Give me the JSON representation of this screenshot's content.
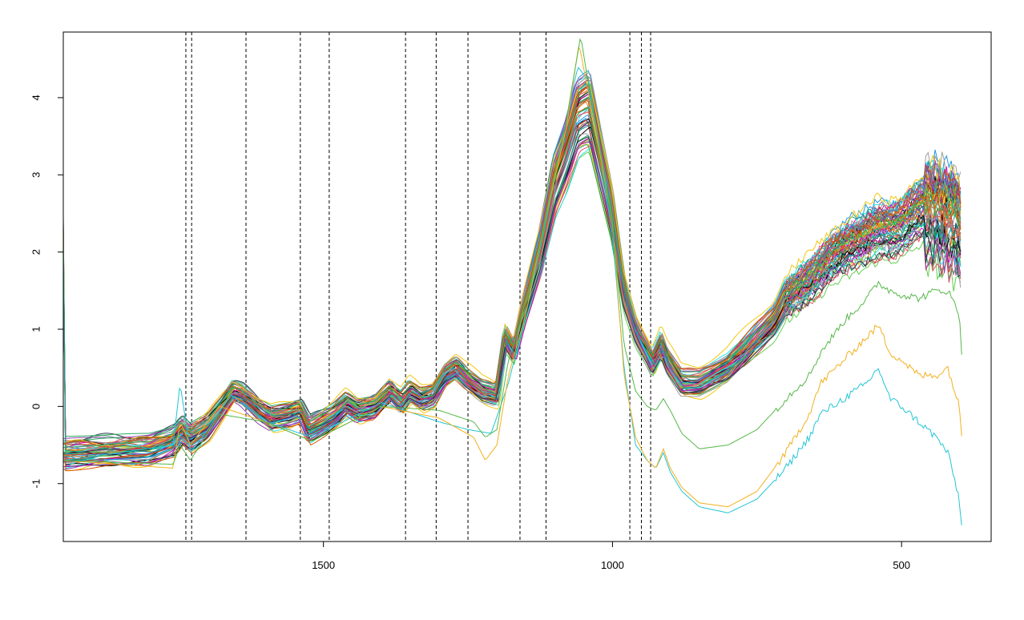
{
  "chart_data": {
    "type": "line",
    "title": "",
    "xlabel": "",
    "ylabel": "",
    "x_reversed": true,
    "xlim": [
      1950,
      345
    ],
    "ylim": [
      -1.75,
      4.85
    ],
    "grid": false,
    "legend": "none",
    "x_ticks": [
      {
        "value": 1500,
        "label": "1500"
      },
      {
        "value": 1000,
        "label": "1000"
      },
      {
        "value": 500,
        "label": "500"
      }
    ],
    "y_ticks": [
      {
        "value": -1,
        "label": "-1"
      },
      {
        "value": 0,
        "label": "0"
      },
      {
        "value": 1,
        "label": "1"
      },
      {
        "value": 2,
        "label": "2"
      },
      {
        "value": 3,
        "label": "3"
      },
      {
        "value": 4,
        "label": "4"
      }
    ],
    "vertical_lines": [
      1738,
      1728,
      1634,
      1540,
      1490,
      1358,
      1305,
      1250,
      1160,
      1115,
      970,
      950,
      934
    ],
    "base_spectrum": [
      [
        1950,
        -0.6
      ],
      [
        1800,
        -0.55
      ],
      [
        1760,
        -0.45
      ],
      [
        1745,
        -0.3
      ],
      [
        1730,
        -0.4
      ],
      [
        1700,
        -0.25
      ],
      [
        1670,
        0.05
      ],
      [
        1655,
        0.2
      ],
      [
        1640,
        0.15
      ],
      [
        1610,
        -0.05
      ],
      [
        1590,
        -0.15
      ],
      [
        1560,
        -0.1
      ],
      [
        1540,
        -0.05
      ],
      [
        1525,
        -0.3
      ],
      [
        1500,
        -0.2
      ],
      [
        1480,
        -0.1
      ],
      [
        1460,
        0.05
      ],
      [
        1440,
        -0.05
      ],
      [
        1410,
        0.0
      ],
      [
        1385,
        0.2
      ],
      [
        1365,
        0.05
      ],
      [
        1350,
        0.2
      ],
      [
        1330,
        0.1
      ],
      [
        1310,
        0.15
      ],
      [
        1290,
        0.4
      ],
      [
        1270,
        0.5
      ],
      [
        1250,
        0.35
      ],
      [
        1225,
        0.2
      ],
      [
        1200,
        0.15
      ],
      [
        1185,
        0.9
      ],
      [
        1170,
        0.7
      ],
      [
        1155,
        1.2
      ],
      [
        1125,
        2.0
      ],
      [
        1100,
        2.9
      ],
      [
        1080,
        3.3
      ],
      [
        1060,
        3.8
      ],
      [
        1040,
        3.9
      ],
      [
        1020,
        3.2
      ],
      [
        1000,
        2.5
      ],
      [
        980,
        1.5
      ],
      [
        960,
        1.0
      ],
      [
        940,
        0.7
      ],
      [
        930,
        0.55
      ],
      [
        915,
        0.8
      ],
      [
        905,
        0.6
      ],
      [
        880,
        0.3
      ],
      [
        850,
        0.3
      ],
      [
        800,
        0.5
      ],
      [
        760,
        0.8
      ],
      [
        720,
        1.1
      ],
      [
        700,
        1.4
      ],
      [
        680,
        1.5
      ],
      [
        650,
        1.7
      ],
      [
        620,
        1.95
      ],
      [
        590,
        2.1
      ],
      [
        560,
        2.2
      ],
      [
        540,
        2.3
      ],
      [
        520,
        2.3
      ],
      [
        500,
        2.35
      ],
      [
        480,
        2.5
      ],
      [
        460,
        2.6
      ],
      [
        440,
        2.55
      ],
      [
        420,
        2.5
      ],
      [
        400,
        2.4
      ],
      [
        395,
        2.2
      ]
    ],
    "outlier_spectra": [
      {
        "color": "#22c5d6",
        "points": [
          [
            1950,
            -0.7
          ],
          [
            1760,
            -0.5
          ],
          [
            1748,
            0.3
          ],
          [
            1730,
            -0.6
          ],
          [
            1700,
            -0.3
          ],
          [
            1660,
            0.15
          ],
          [
            1600,
            -0.2
          ],
          [
            1520,
            -0.4
          ],
          [
            1400,
            0.05
          ],
          [
            1300,
            -0.2
          ],
          [
            1250,
            -0.3
          ],
          [
            1210,
            -0.35
          ],
          [
            1180,
            0.3
          ],
          [
            1150,
            1.2
          ],
          [
            1120,
            2.2
          ],
          [
            1080,
            3.7
          ],
          [
            1060,
            4.4
          ],
          [
            1040,
            4.2
          ],
          [
            1000,
            2.2
          ],
          [
            980,
            0.5
          ],
          [
            960,
            -0.5
          ],
          [
            940,
            -0.7
          ],
          [
            925,
            -0.8
          ],
          [
            912,
            -0.6
          ],
          [
            900,
            -0.85
          ],
          [
            880,
            -1.1
          ],
          [
            850,
            -1.3
          ],
          [
            800,
            -1.38
          ],
          [
            750,
            -1.2
          ],
          [
            700,
            -0.8
          ],
          [
            660,
            -0.4
          ],
          [
            640,
            -0.1
          ],
          [
            600,
            0.1
          ],
          [
            560,
            0.3
          ],
          [
            540,
            0.5
          ],
          [
            520,
            0.1
          ],
          [
            500,
            0.0
          ],
          [
            470,
            -0.2
          ],
          [
            440,
            -0.4
          ],
          [
            420,
            -0.6
          ],
          [
            400,
            -1.2
          ],
          [
            395,
            -1.65
          ]
        ]
      },
      {
        "color": "#f2b01e",
        "points": [
          [
            1950,
            -0.7
          ],
          [
            1760,
            -0.8
          ],
          [
            1748,
            -0.2
          ],
          [
            1730,
            -0.5
          ],
          [
            1680,
            0.0
          ],
          [
            1600,
            -0.2
          ],
          [
            1520,
            -0.45
          ],
          [
            1400,
            0.0
          ],
          [
            1300,
            -0.15
          ],
          [
            1240,
            -0.4
          ],
          [
            1220,
            -0.7
          ],
          [
            1200,
            -0.5
          ],
          [
            1180,
            0.4
          ],
          [
            1150,
            1.2
          ],
          [
            1120,
            2.3
          ],
          [
            1080,
            3.6
          ],
          [
            1058,
            4.7
          ],
          [
            1040,
            4.0
          ],
          [
            1000,
            2.4
          ],
          [
            980,
            0.4
          ],
          [
            960,
            -0.4
          ],
          [
            940,
            -0.7
          ],
          [
            925,
            -0.8
          ],
          [
            912,
            -0.55
          ],
          [
            900,
            -0.8
          ],
          [
            880,
            -1.05
          ],
          [
            850,
            -1.25
          ],
          [
            800,
            -1.3
          ],
          [
            750,
            -1.1
          ],
          [
            700,
            -0.6
          ],
          [
            660,
            -0.1
          ],
          [
            640,
            0.3
          ],
          [
            600,
            0.6
          ],
          [
            560,
            0.9
          ],
          [
            540,
            1.05
          ],
          [
            520,
            0.7
          ],
          [
            500,
            0.6
          ],
          [
            470,
            0.4
          ],
          [
            440,
            0.4
          ],
          [
            420,
            0.5
          ],
          [
            400,
            0.0
          ],
          [
            395,
            -0.45
          ]
        ]
      },
      {
        "color": "#55b848",
        "points": [
          [
            1950,
            -0.7
          ],
          [
            1760,
            -0.75
          ],
          [
            1748,
            -0.5
          ],
          [
            1730,
            -0.7
          ],
          [
            1680,
            -0.1
          ],
          [
            1600,
            -0.2
          ],
          [
            1520,
            -0.45
          ],
          [
            1400,
            0.0
          ],
          [
            1300,
            -0.05
          ],
          [
            1240,
            -0.2
          ],
          [
            1220,
            -0.4
          ],
          [
            1200,
            -0.3
          ],
          [
            1180,
            0.6
          ],
          [
            1150,
            1.3
          ],
          [
            1120,
            2.3
          ],
          [
            1080,
            3.7
          ],
          [
            1055,
            4.8
          ],
          [
            1040,
            4.1
          ],
          [
            1000,
            2.4
          ],
          [
            980,
            0.8
          ],
          [
            960,
            0.2
          ],
          [
            940,
            0.0
          ],
          [
            925,
            -0.05
          ],
          [
            912,
            0.1
          ],
          [
            900,
            -0.05
          ],
          [
            880,
            -0.35
          ],
          [
            850,
            -0.55
          ],
          [
            800,
            -0.5
          ],
          [
            750,
            -0.3
          ],
          [
            700,
            0.1
          ],
          [
            660,
            0.4
          ],
          [
            640,
            0.7
          ],
          [
            600,
            1.1
          ],
          [
            560,
            1.4
          ],
          [
            540,
            1.6
          ],
          [
            520,
            1.5
          ],
          [
            500,
            1.45
          ],
          [
            470,
            1.4
          ],
          [
            440,
            1.5
          ],
          [
            420,
            1.5
          ],
          [
            400,
            1.2
          ],
          [
            395,
            0.6
          ]
        ]
      }
    ]
  }
}
